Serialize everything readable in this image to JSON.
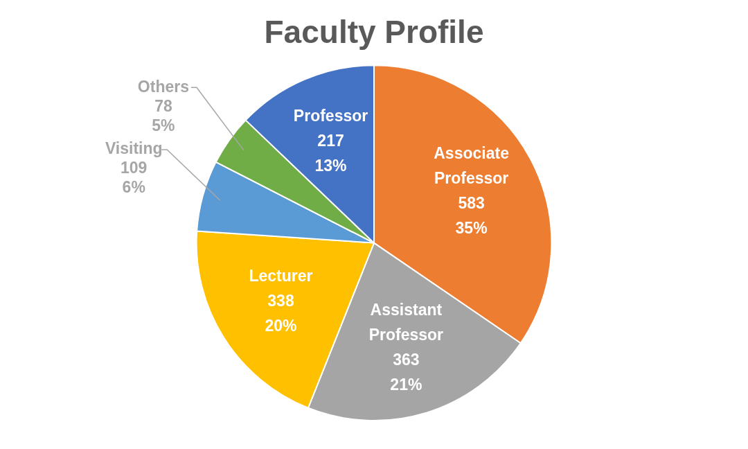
{
  "chart_data": {
    "type": "pie",
    "title": "Faculty Profile",
    "categories": [
      "Associate Professor",
      "Assistant Professor",
      "Lecturer",
      "Visiting",
      "Others",
      "Professor"
    ],
    "values": [
      583,
      363,
      338,
      109,
      78,
      217
    ],
    "colors": [
      "#ed7d31",
      "#a5a5a5",
      "#ffc000",
      "#5b9bd5",
      "#70ad47",
      "#4472c4"
    ],
    "value_labels": [
      "583\n35%",
      "363\n21%",
      "338\n20%",
      "109\n6%",
      "78\n5%",
      "217\n13%"
    ],
    "legend": false
  }
}
